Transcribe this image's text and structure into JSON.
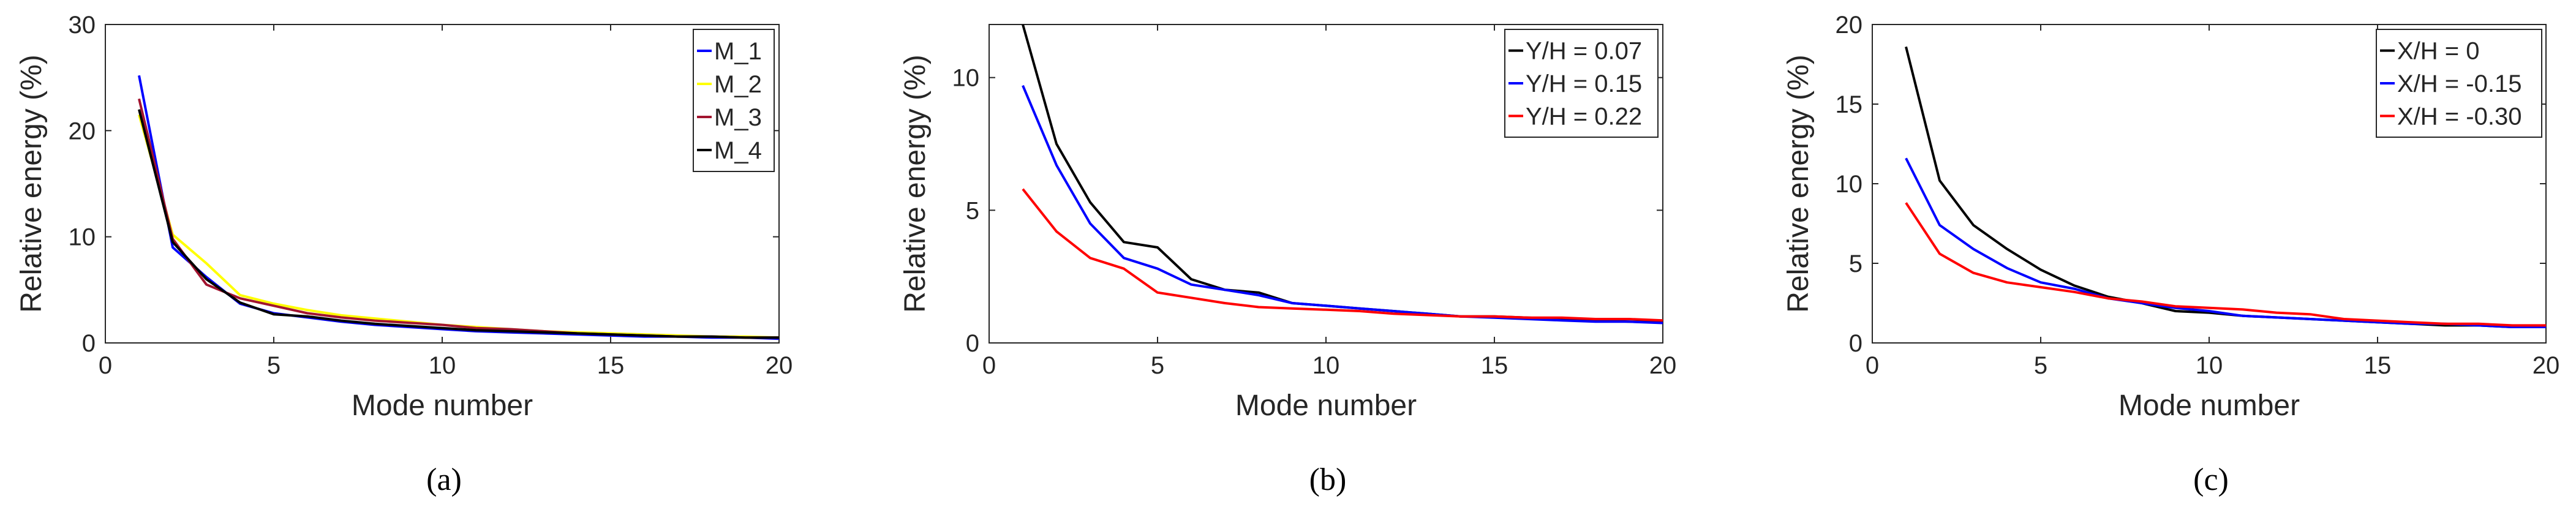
{
  "figure_captions": [
    "(a)",
    "(b)",
    "(c)"
  ],
  "chart_data": [
    {
      "type": "line",
      "panel": "a",
      "title": "",
      "xlabel": "Mode number",
      "ylabel": "Relative energy (%)",
      "xlim": [
        0,
        20
      ],
      "ylim": [
        0,
        30
      ],
      "xticks": [
        0,
        5,
        10,
        15,
        20
      ],
      "yticks": [
        0,
        10,
        20,
        30
      ],
      "legend_position": "top-right",
      "x": [
        1,
        2,
        3,
        4,
        5,
        6,
        7,
        8,
        9,
        10,
        11,
        12,
        13,
        14,
        15,
        16,
        17,
        18,
        19,
        20
      ],
      "series": [
        {
          "name": "M_1",
          "color": "#0000ff",
          "values": [
            25.2,
            9.0,
            6.2,
            3.7,
            2.8,
            2.4,
            2.0,
            1.7,
            1.5,
            1.3,
            1.1,
            1.0,
            0.9,
            0.8,
            0.7,
            0.6,
            0.6,
            0.5,
            0.5,
            0.4
          ]
        },
        {
          "name": "M_2",
          "color": "#ffff00",
          "values": [
            21.5,
            10.2,
            7.5,
            4.5,
            3.7,
            3.1,
            2.6,
            2.3,
            2.0,
            1.7,
            1.5,
            1.3,
            1.1,
            1.0,
            0.9,
            0.8,
            0.7,
            0.6,
            0.6,
            0.5
          ]
        },
        {
          "name": "M_3",
          "color": "#a2142f",
          "values": [
            23.0,
            9.8,
            5.5,
            4.2,
            3.5,
            2.8,
            2.4,
            2.1,
            1.9,
            1.7,
            1.4,
            1.3,
            1.1,
            0.9,
            0.8,
            0.7,
            0.6,
            0.6,
            0.5,
            0.5
          ]
        },
        {
          "name": "M_4",
          "color": "#000000",
          "values": [
            22.0,
            9.5,
            6.0,
            3.8,
            2.7,
            2.5,
            2.1,
            1.8,
            1.6,
            1.4,
            1.2,
            1.1,
            1.0,
            0.9,
            0.8,
            0.7,
            0.6,
            0.6,
            0.5,
            0.5
          ]
        }
      ]
    },
    {
      "type": "line",
      "panel": "b",
      "title": "",
      "xlabel": "Mode number",
      "ylabel": "Relative energy (%)",
      "xlim": [
        0,
        20
      ],
      "ylim": [
        0,
        12
      ],
      "xticks": [
        0,
        5,
        10,
        15,
        20
      ],
      "yticks": [
        0,
        5,
        10
      ],
      "legend_position": "top-right",
      "x": [
        1,
        2,
        3,
        4,
        5,
        6,
        7,
        8,
        9,
        10,
        11,
        12,
        13,
        14,
        15,
        16,
        17,
        18,
        19,
        20
      ],
      "series": [
        {
          "name": "Y/H = 0.07",
          "color": "#000000",
          "values": [
            12.0,
            7.5,
            5.3,
            3.8,
            3.6,
            2.4,
            2.0,
            1.9,
            1.5,
            1.4,
            1.3,
            1.2,
            1.1,
            1.0,
            1.0,
            0.95,
            0.9,
            0.85,
            0.8,
            0.8
          ]
        },
        {
          "name": "Y/H = 0.15",
          "color": "#0000ff",
          "values": [
            9.7,
            6.7,
            4.5,
            3.2,
            2.8,
            2.2,
            2.0,
            1.8,
            1.5,
            1.4,
            1.3,
            1.2,
            1.1,
            1.0,
            0.95,
            0.9,
            0.85,
            0.8,
            0.8,
            0.75
          ]
        },
        {
          "name": "Y/H = 0.22",
          "color": "#ff0000",
          "values": [
            5.8,
            4.2,
            3.2,
            2.8,
            1.9,
            1.7,
            1.5,
            1.35,
            1.3,
            1.25,
            1.2,
            1.1,
            1.05,
            1.0,
            1.0,
            0.95,
            0.95,
            0.9,
            0.9,
            0.85
          ]
        }
      ]
    },
    {
      "type": "line",
      "panel": "c",
      "title": "",
      "xlabel": "Mode number",
      "ylabel": "Relative energy (%)",
      "xlim": [
        0,
        20
      ],
      "ylim": [
        0,
        20
      ],
      "xticks": [
        0,
        5,
        10,
        15,
        20
      ],
      "yticks": [
        0,
        5,
        10,
        15,
        20
      ],
      "legend_position": "top-right",
      "x": [
        1,
        2,
        3,
        4,
        5,
        6,
        7,
        8,
        9,
        10,
        11,
        12,
        13,
        14,
        15,
        16,
        17,
        18,
        19,
        20
      ],
      "series": [
        {
          "name": "X/H = 0",
          "color": "#000000",
          "values": [
            18.6,
            10.2,
            7.4,
            5.9,
            4.6,
            3.6,
            2.9,
            2.5,
            2.0,
            1.9,
            1.7,
            1.6,
            1.5,
            1.4,
            1.3,
            1.2,
            1.1,
            1.1,
            1.0,
            1.0
          ]
        },
        {
          "name": "X/H = -0.15",
          "color": "#0000ff",
          "values": [
            11.6,
            7.4,
            5.9,
            4.7,
            3.8,
            3.4,
            2.8,
            2.5,
            2.2,
            2.0,
            1.7,
            1.6,
            1.5,
            1.4,
            1.3,
            1.2,
            1.2,
            1.1,
            1.0,
            1.0
          ]
        },
        {
          "name": "X/H = -0.30",
          "color": "#ff0000",
          "values": [
            8.8,
            5.6,
            4.4,
            3.8,
            3.5,
            3.2,
            2.8,
            2.6,
            2.3,
            2.2,
            2.1,
            1.9,
            1.8,
            1.5,
            1.4,
            1.3,
            1.2,
            1.2,
            1.1,
            1.1
          ]
        }
      ]
    }
  ]
}
